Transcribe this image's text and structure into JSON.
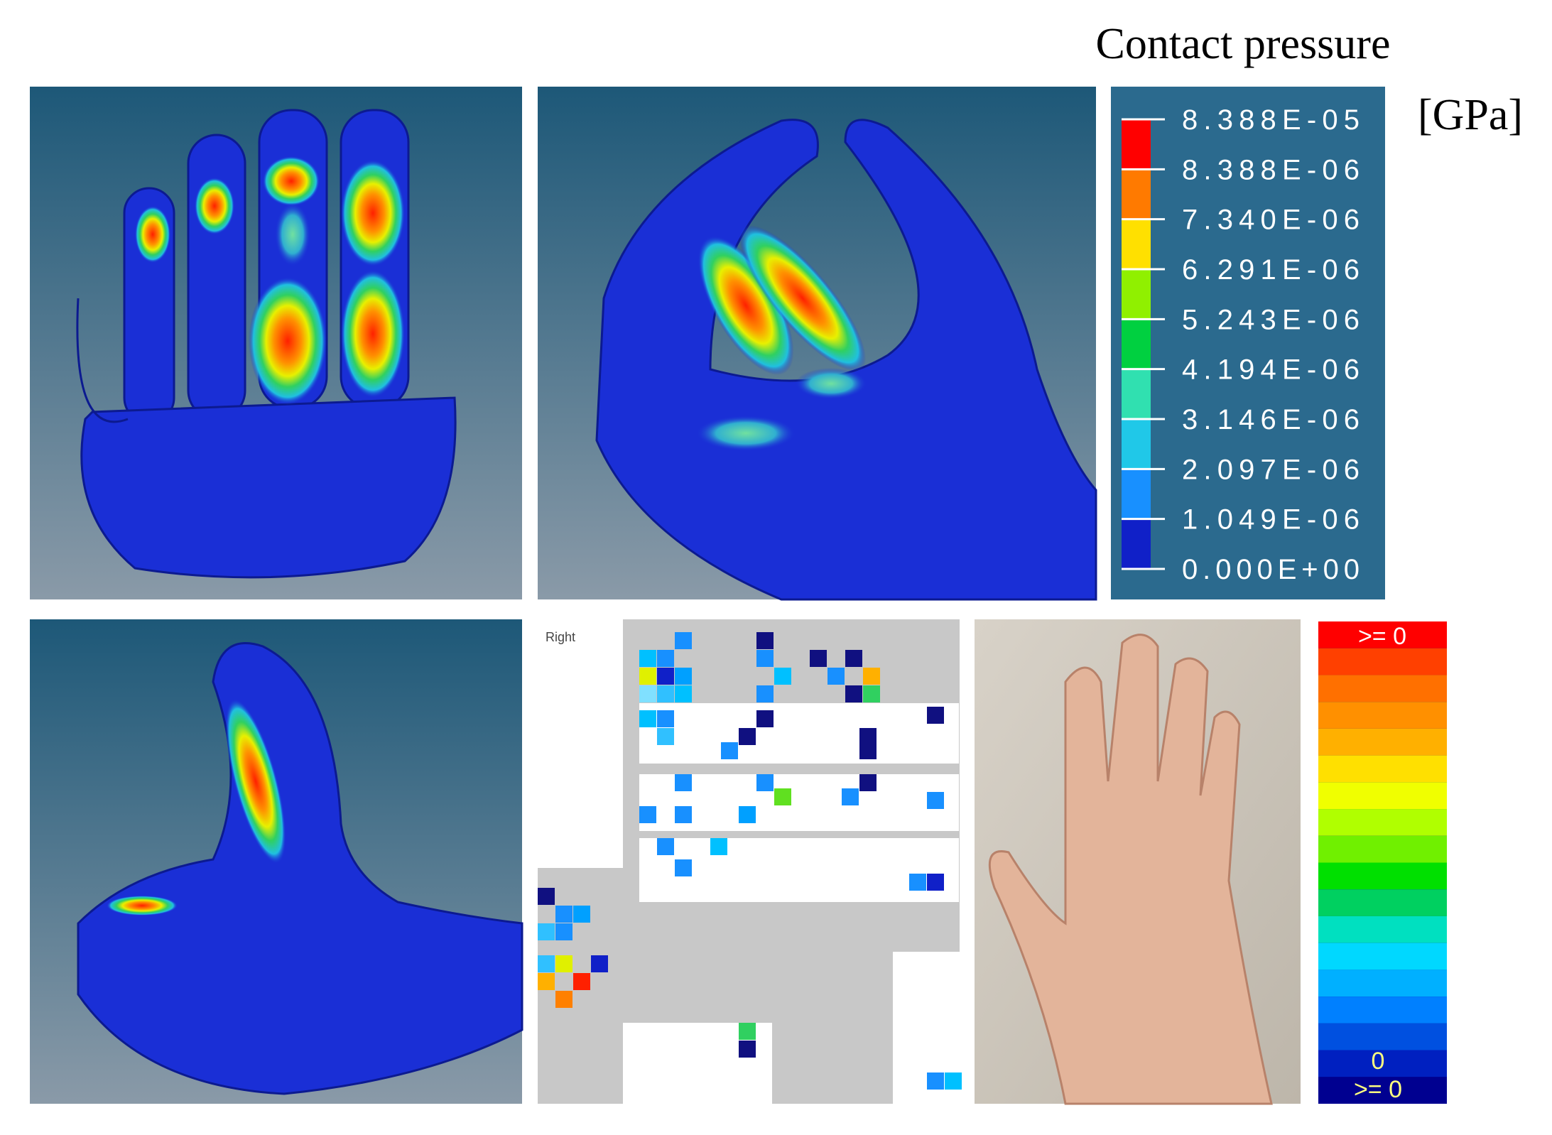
{
  "title": "Contact pressure",
  "unit": "[GPa]",
  "legend": {
    "labels": [
      "8.388E-05",
      "8.388E-06",
      "7.340E-06",
      "6.291E-06",
      "5.243E-06",
      "4.194E-06",
      "3.146E-06",
      "2.097E-06",
      "1.049E-06",
      "0.000E+00"
    ]
  },
  "sensor_view": {
    "label": "Right"
  },
  "sensor_scale": {
    "top_label": ">= 0",
    "mid_label": "0",
    "bottom_label": ">= 0"
  }
}
